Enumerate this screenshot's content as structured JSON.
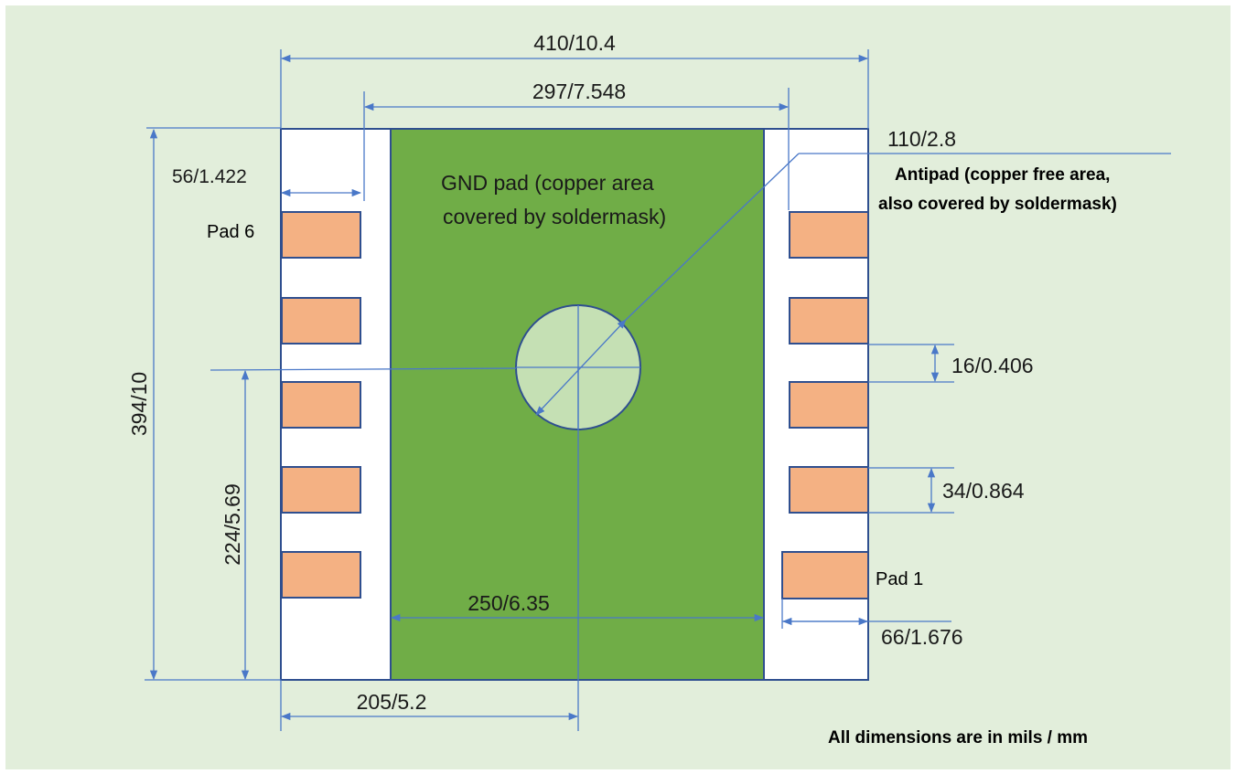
{
  "colors": {
    "background": "#e2eedb",
    "package_fill": "#ffffff",
    "gnd_pad": "#70ad47",
    "antipad": "#c5e0b4",
    "signal_pad": "#f4b183",
    "outline": "#2f4f8f",
    "dimension_line": "#4a78c8"
  },
  "labels": {
    "gnd_pad_line1": "GND pad (copper area",
    "gnd_pad_line2": "covered by soldermask)",
    "antipad_line1": "Antipad (copper free area,",
    "antipad_line2": "also covered by soldermask)",
    "pad6": "Pad 6",
    "pad1": "Pad 1",
    "footer": "All dimensions are in mils / mm"
  },
  "dimensions": {
    "total_width": "410/10.4",
    "pad_span": "297/7.548",
    "antipad_diameter": "110/2.8",
    "pad_width": "56/1.422",
    "total_height": "394/10",
    "pad_gap": "16/0.406",
    "pad_height": "34/0.864",
    "center_y": "224/5.69",
    "gnd_width": "250/6.35",
    "pad1_width": "66/1.676",
    "center_x": "205/5.2"
  },
  "icons": [
    "antipad-circle-icon",
    "arrow-icon"
  ]
}
